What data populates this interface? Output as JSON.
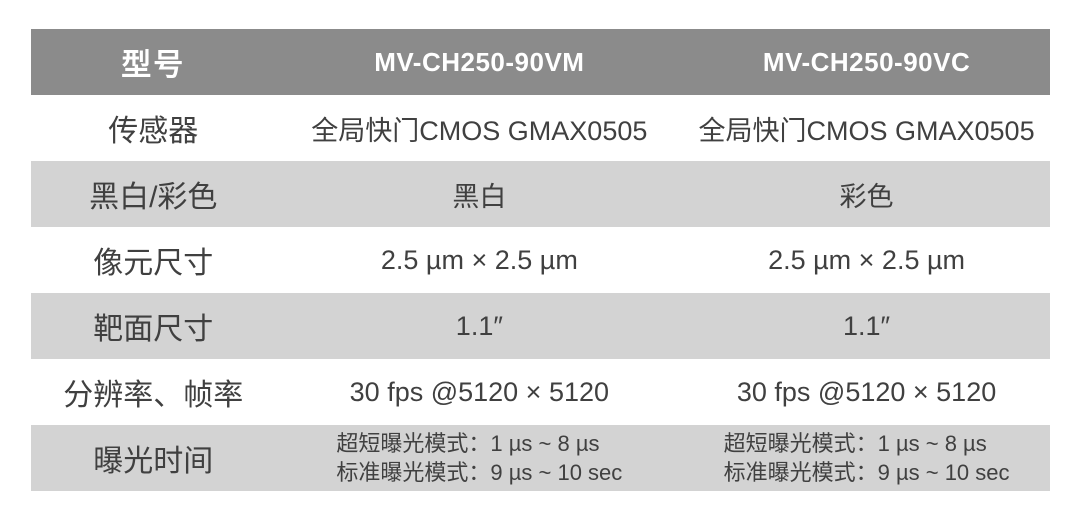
{
  "colors": {
    "header_bg": "#8b8b8b",
    "stripe_bg": "#d3d3d3",
    "header_text": "#ffffff",
    "body_text": "#404040"
  },
  "table": {
    "header": {
      "label": "型号",
      "col1": "MV-CH250-90VM",
      "col2": "MV-CH250-90VC"
    },
    "rows": [
      {
        "label": "传感器",
        "col1": "全局快门CMOS GMAX0505",
        "col2": "全局快门CMOS GMAX0505"
      },
      {
        "label": "黑白/彩色",
        "col1": "黑白",
        "col2": "彩色"
      },
      {
        "label": "像元尺寸",
        "col1": "2.5 µm × 2.5 µm",
        "col2": "2.5 µm × 2.5 µm"
      },
      {
        "label": "靶面尺寸",
        "col1": "1.1″",
        "col2": "1.1″"
      },
      {
        "label": "分辨率、帧率",
        "col1": "30 fps @5120 × 5120",
        "col2": "30 fps @5120 × 5120"
      },
      {
        "label": "曝光时间",
        "col1_lines": [
          "超短曝光模式：1 µs ~ 8 µs",
          "标准曝光模式：9 µs ~ 10 sec"
        ],
        "col2_lines": [
          "超短曝光模式：1 µs ~ 8 µs",
          "标准曝光模式：9 µs ~ 10 sec"
        ]
      }
    ]
  }
}
